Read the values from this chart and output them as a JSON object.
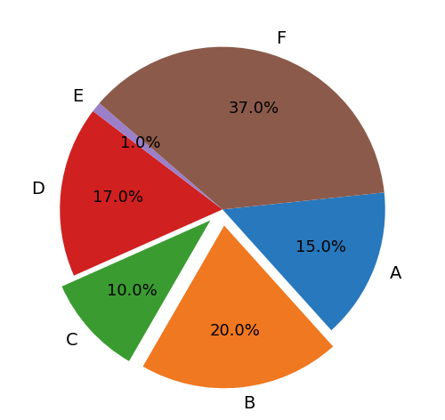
{
  "labels": [
    "A",
    "B",
    "C",
    "D",
    "E",
    "F"
  ],
  "sizes": [
    15.0,
    20.0,
    10.0,
    17.0,
    1.0,
    37.0
  ],
  "colors": [
    "#2878bd",
    "#f07820",
    "#3a9c30",
    "#d02020",
    "#9b7fc8",
    "#8b5a4a"
  ],
  "explode": [
    0.0,
    0.1,
    0.1,
    0.0,
    0.0,
    0.0
  ],
  "autopct_fontsize": 13,
  "label_fontsize": 14,
  "background_color": "#ffffff",
  "startangle": 6
}
